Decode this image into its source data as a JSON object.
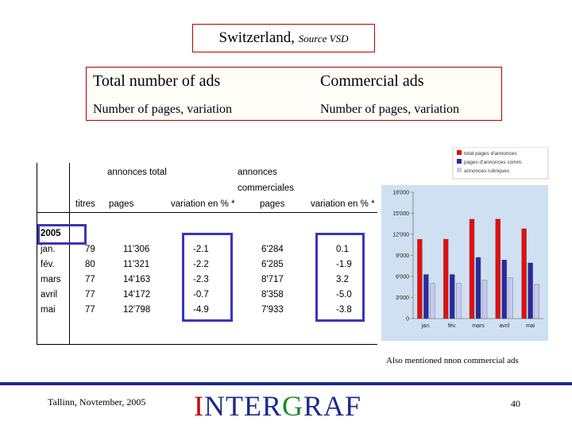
{
  "title": {
    "country": "Switzerland,",
    "source": "Source VSD"
  },
  "info": {
    "left_heading": "Total number of ads",
    "right_heading": "Commercial ads",
    "left_sub": "Number of pages, variation",
    "right_sub": "Number of pages, variation"
  },
  "table": {
    "group_total": "annonces total",
    "group_commercial_1": "annonces",
    "group_commercial_2": "commerciales",
    "columns": [
      "titres",
      "pages",
      "variation en % *",
      "pages",
      "variation en % *"
    ],
    "year": "2005",
    "rows": [
      {
        "month": "jan.",
        "titres": "79",
        "pages": "11'306",
        "var": "-2.1",
        "cpages": "6'284",
        "cvar": "0.1"
      },
      {
        "month": "fév.",
        "titres": "80",
        "pages": "11'321",
        "var": "-2.2",
        "cpages": "6'285",
        "cvar": "-1.9"
      },
      {
        "month": "mars",
        "titres": "77",
        "pages": "14'163",
        "var": "-2.3",
        "cpages": "8'717",
        "cvar": "3.2"
      },
      {
        "month": "avril",
        "titres": "77",
        "pages": "14'172",
        "var": "-0.7",
        "cpages": "8'358",
        "cvar": "-5.0"
      },
      {
        "month": "mai",
        "titres": "77",
        "pages": "12'798",
        "var": "-4.9",
        "cpages": "7'933",
        "cvar": "-3.8"
      }
    ]
  },
  "chart_data": {
    "type": "bar",
    "categories": [
      "jan.",
      "fév.",
      "mars",
      "avril",
      "mai"
    ],
    "series": [
      {
        "name": "total pages d'annonces",
        "color": "#e01010",
        "values": [
          11306,
          11321,
          14163,
          14172,
          12798
        ]
      },
      {
        "name": "pages d'annonces comm.",
        "color": "#2a2a9e",
        "values": [
          6284,
          6285,
          8717,
          8358,
          7933
        ]
      },
      {
        "name": "annonces rubriques",
        "color": "#c8c8f0",
        "values": [
          5022,
          5036,
          5446,
          5814,
          4865
        ]
      }
    ],
    "ylim": [
      0,
      18000
    ],
    "yticks": [
      "0",
      "3'000",
      "6'000",
      "9'000",
      "12'000",
      "15'000",
      "18'000"
    ],
    "legend": "top",
    "background": "#cfe0f2"
  },
  "note": "Also mentioned nnon commercial ads",
  "footer": {
    "place": "Tallinn, Novtember, 2005",
    "logo_a": "I",
    "logo_b": "NTER",
    "logo_c": "G",
    "logo_d": "RAF",
    "page": "40"
  }
}
